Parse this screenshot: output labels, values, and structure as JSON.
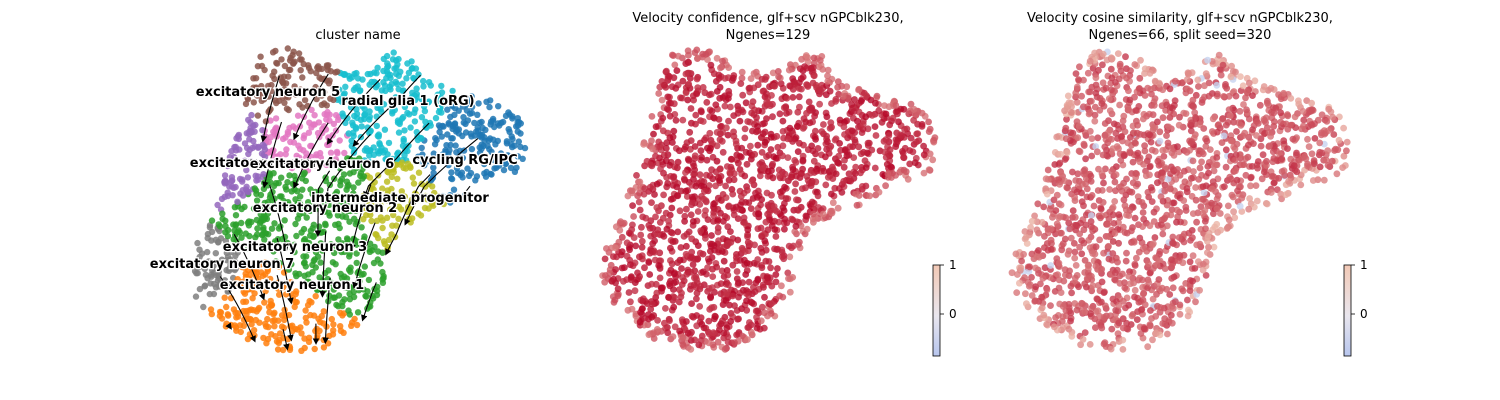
{
  "chart_data": [
    {
      "type": "scatter",
      "title": "cluster name",
      "colors": {
        "excitatory neuron 5": "#8c564b",
        "radial glia 1 (oRG)": "#17becf",
        "excitatory neuron 4": "#9467bd",
        "excitatory neuron 6": "#e377c2",
        "cycling RG/IPC": "#1f77b4",
        "intermediate progenitor": "#bcbd22",
        "excitatory neuron 2": "#2ca02c",
        "excitatory neuron 3": "#2ca02c",
        "excitatory neuron 7": "#7f7f7f",
        "excitatory neuron 1": "#ff7f0e"
      },
      "cluster_labels": [
        {
          "text": "excitatory neuron 5"
        },
        {
          "text": "radial glia 1 (oRG)"
        },
        {
          "text": "excitatory neuron 4"
        },
        {
          "text": "excitatory neuron 6"
        },
        {
          "text": "cycling RG/IPC"
        },
        {
          "text": "intermediate progenitor"
        },
        {
          "text": "excitatory neuron 2"
        },
        {
          "text": "excitatory neuron 3"
        },
        {
          "text": "excitatory neuron 7"
        },
        {
          "text": "excitatory neuron 1"
        }
      ]
    },
    {
      "type": "scatter",
      "title": "Velocity confidence, glf+scv nGPCblk230,",
      "title_line2": "Ngenes=129",
      "colorbar": {
        "ticks": [
          "1",
          "0"
        ],
        "range": [
          -0.8,
          1.0
        ],
        "cmap": "coolwarm"
      }
    },
    {
      "type": "scatter",
      "title": "Velocity cosine similarity, glf+scv nGPCblk230,",
      "title_line2": "Ngenes=66, split seed=320",
      "colorbar": {
        "ticks": [
          "1",
          "0"
        ],
        "range": [
          -0.8,
          1.0
        ],
        "cmap": "coolwarm"
      }
    }
  ]
}
